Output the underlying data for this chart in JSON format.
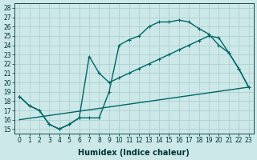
{
  "xlabel": "Humidex (Indice chaleur)",
  "xlim": [
    -0.5,
    23.5
  ],
  "ylim": [
    14.5,
    28.5
  ],
  "xticks": [
    0,
    1,
    2,
    3,
    4,
    5,
    6,
    7,
    8,
    9,
    10,
    11,
    12,
    13,
    14,
    15,
    16,
    17,
    18,
    19,
    20,
    21,
    22,
    23
  ],
  "yticks": [
    15,
    16,
    17,
    18,
    19,
    20,
    21,
    22,
    23,
    24,
    25,
    26,
    27,
    28
  ],
  "background_color": "#cce8e8",
  "grid_color": "#aacccc",
  "line_color": "#006666",
  "line1_x": [
    0,
    1,
    2,
    3,
    4,
    5,
    6,
    7,
    8,
    9,
    10,
    11,
    12,
    13,
    14,
    15,
    16,
    17,
    18,
    19,
    20,
    21,
    22,
    23
  ],
  "line1_y": [
    18.5,
    17.5,
    17.0,
    15.5,
    15.0,
    15.5,
    16.2,
    16.2,
    16.2,
    19.0,
    24.0,
    24.6,
    25.0,
    26.0,
    26.5,
    26.5,
    26.7,
    26.5,
    25.8,
    25.2,
    24.0,
    23.2,
    21.5,
    19.5
  ],
  "line2_x": [
    0,
    1,
    2,
    3,
    4,
    5,
    6,
    7,
    8,
    9,
    10,
    11,
    12,
    13,
    14,
    15,
    16,
    17,
    18,
    19,
    20,
    21,
    22,
    23
  ],
  "line2_y": [
    18.5,
    17.5,
    17.0,
    15.5,
    15.0,
    15.5,
    16.2,
    22.8,
    21.0,
    20.0,
    20.5,
    21.0,
    21.5,
    22.0,
    22.5,
    23.0,
    23.5,
    24.0,
    24.5,
    25.0,
    24.8,
    23.2,
    21.5,
    19.5
  ],
  "line3_x": [
    0,
    23
  ],
  "line3_y": [
    16.0,
    19.5
  ],
  "line_width": 1.0,
  "marker_size": 3.5,
  "font_size_ticks": 5.5,
  "font_size_xlabel": 7.0
}
